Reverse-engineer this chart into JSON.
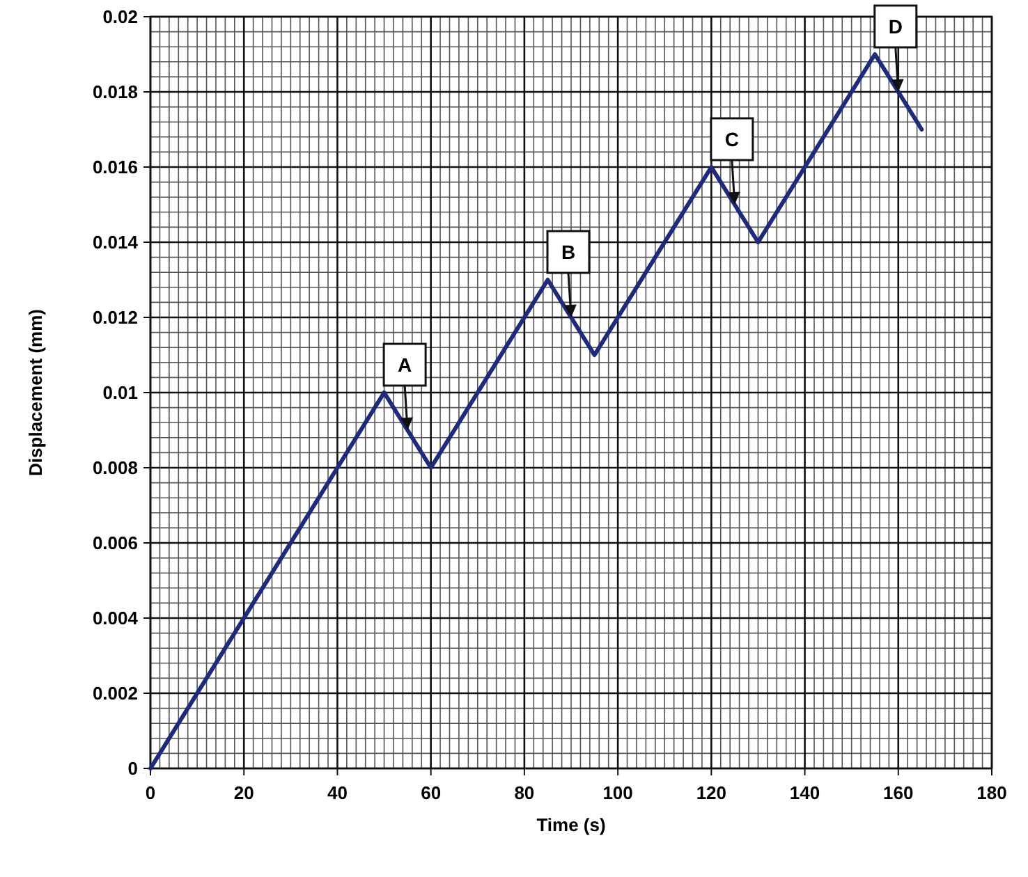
{
  "chart_data": {
    "type": "line",
    "xlabel": "Time (s)",
    "ylabel": "Displacement (mm)",
    "x": [
      0,
      50,
      60,
      85,
      95,
      120,
      130,
      155,
      165
    ],
    "series": [
      {
        "color": "#1f2a7a",
        "values": [
          0,
          0.01,
          0.008,
          0.013,
          0.011,
          0.016,
          0.014,
          0.019,
          0.017
        ]
      }
    ],
    "xlim": [
      0,
      180
    ],
    "xticks": [
      0,
      20,
      40,
      60,
      80,
      100,
      120,
      140,
      160,
      180
    ],
    "ylim": [
      0,
      0.02
    ],
    "yticks": [
      0,
      0.002,
      0.004,
      0.006,
      0.008,
      0.01,
      0.012,
      0.014,
      0.016,
      0.018,
      0.02
    ],
    "grid": true,
    "marker": "none",
    "line_style": "solid",
    "annotations": [
      {
        "text": "A",
        "x": 55,
        "y": 0.009
      },
      {
        "text": "B",
        "x": 90,
        "y": 0.012
      },
      {
        "text": "C",
        "x": 125,
        "y": 0.015
      },
      {
        "text": "D",
        "x": 160,
        "y": 0.018
      }
    ]
  }
}
